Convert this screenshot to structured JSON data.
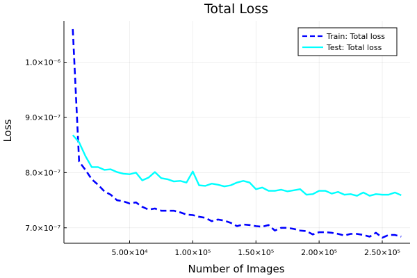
{
  "chart_data": {
    "type": "line",
    "title": "Total Loss",
    "xlabel": "Number of Images",
    "ylabel": "Loss",
    "xlim": [
      -2000,
      272000
    ],
    "ylim": [
      6.72e-07,
      1.075e-06
    ],
    "grid": true,
    "legend_position": "top-right",
    "x_ticks": [
      {
        "value": 50000,
        "label": "5.00×10⁴"
      },
      {
        "value": 100000,
        "label": "1.00×10⁵"
      },
      {
        "value": 150000,
        "label": "1.50×10⁵"
      },
      {
        "value": 200000,
        "label": "2.00×10⁵"
      },
      {
        "value": 250000,
        "label": "2.50×10⁵"
      }
    ],
    "y_ticks": [
      {
        "value": 7e-07,
        "label": "7.0×10⁻⁷"
      },
      {
        "value": 8e-07,
        "label": "8.0×10⁻⁷"
      },
      {
        "value": 9e-07,
        "label": "9.0×10⁻⁷"
      },
      {
        "value": 1e-06,
        "label": "1.0×10⁻⁶"
      }
    ],
    "x": [
      5000,
      10000,
      15000,
      20000,
      25000,
      30000,
      35000,
      40000,
      45000,
      50000,
      55000,
      60000,
      65000,
      70000,
      75000,
      80000,
      85000,
      90000,
      95000,
      100000,
      105000,
      110000,
      115000,
      120000,
      125000,
      130000,
      135000,
      140000,
      145000,
      150000,
      155000,
      160000,
      165000,
      170000,
      175000,
      180000,
      185000,
      190000,
      195000,
      200000,
      205000,
      210000,
      215000,
      220000,
      225000,
      230000,
      235000,
      240000,
      245000,
      250000,
      255000,
      260000,
      265000
    ],
    "series": [
      {
        "name": "Train: Total loss",
        "color": "#0000ff",
        "style": "dashed",
        "values": [
          1.06e-06,
          8.2e-07,
          8.05e-07,
          7.88e-07,
          7.78e-07,
          7.66e-07,
          7.6e-07,
          7.5e-07,
          7.48e-07,
          7.44e-07,
          7.46e-07,
          7.38e-07,
          7.33e-07,
          7.35e-07,
          7.31e-07,
          7.31e-07,
          7.31e-07,
          7.28e-07,
          7.24e-07,
          7.23e-07,
          7.2e-07,
          7.18e-07,
          7.12e-07,
          7.15e-07,
          7.13e-07,
          7.09e-07,
          7.03e-07,
          7.06e-07,
          7.05e-07,
          7.03e-07,
          7.02e-07,
          7.05e-07,
          6.95e-07,
          7e-07,
          7e-07,
          6.98e-07,
          6.95e-07,
          6.94e-07,
          6.88e-07,
          6.92e-07,
          6.92e-07,
          6.91e-07,
          6.89e-07,
          6.86e-07,
          6.89e-07,
          6.89e-07,
          6.87e-07,
          6.84e-07,
          6.91e-07,
          6.82e-07,
          6.87e-07,
          6.87e-07,
          6.84e-07
        ]
      },
      {
        "name": "Test: Total loss",
        "color": "#00ffff",
        "style": "solid",
        "values": [
          8.68e-07,
          8.55e-07,
          8.3e-07,
          8.1e-07,
          8.1e-07,
          8.05e-07,
          8.06e-07,
          8.01e-07,
          7.98e-07,
          7.97e-07,
          8e-07,
          7.86e-07,
          7.91e-07,
          8.01e-07,
          7.9e-07,
          7.88e-07,
          7.84e-07,
          7.85e-07,
          7.82e-07,
          8.02e-07,
          7.77e-07,
          7.76e-07,
          7.8e-07,
          7.78e-07,
          7.75e-07,
          7.77e-07,
          7.82e-07,
          7.85e-07,
          7.82e-07,
          7.7e-07,
          7.73e-07,
          7.67e-07,
          7.67e-07,
          7.69e-07,
          7.66e-07,
          7.68e-07,
          7.7e-07,
          7.6e-07,
          7.61e-07,
          7.67e-07,
          7.67e-07,
          7.62e-07,
          7.65e-07,
          7.6e-07,
          7.61e-07,
          7.58e-07,
          7.64e-07,
          7.58e-07,
          7.61e-07,
          7.6e-07,
          7.6e-07,
          7.64e-07,
          7.59e-07
        ]
      }
    ]
  }
}
